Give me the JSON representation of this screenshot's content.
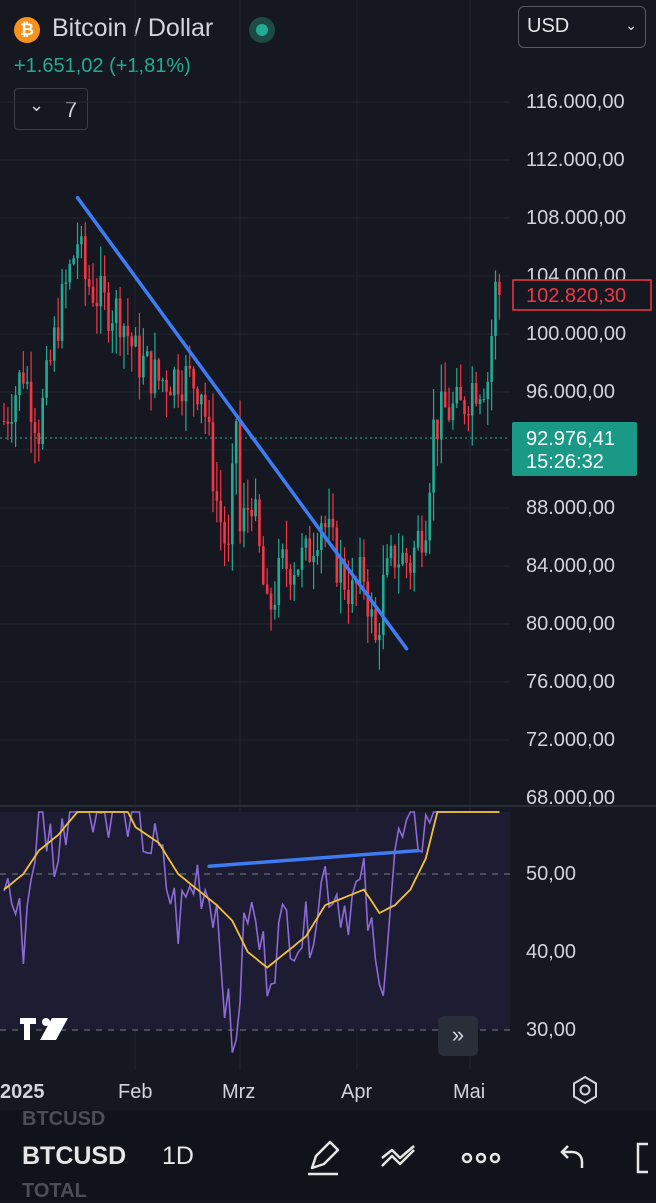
{
  "header": {
    "logo_icon": "bitcoin-icon",
    "logo_glyph": "₿",
    "title": "Bitcoin / Dollar",
    "change": "+1.651,02 (+1,81%)",
    "currency": "USD",
    "indicators_count": "7"
  },
  "colors": {
    "background": "#161821",
    "up": "#22ab94",
    "down": "#f23645",
    "trendline": "#3d7cf2",
    "rsi": "#8a6bd8",
    "rsi_ma": "#f0c236"
  },
  "price_axis": {
    "ticks": [
      "116.000,00",
      "112.000,00",
      "108.000,00",
      "104.000,00",
      "100.000,00",
      "96.000,00",
      "92.000,00",
      "88.000,00",
      "84.000,00",
      "80.000,00",
      "76.000,00",
      "72.000,00",
      "68.000,00"
    ],
    "last_price_label": "102.820,30",
    "prev_close_label": "92.976,41",
    "countdown": "15:26:32"
  },
  "rsi_axis": {
    "ticks": [
      "50,00",
      "40,00",
      "30,00"
    ]
  },
  "time_axis": {
    "labels": [
      "2025",
      "Feb",
      "Mrz",
      "Apr",
      "Mai"
    ]
  },
  "chart_data": [
    {
      "type": "candlestick",
      "title": "Bitcoin / Dollar",
      "interval": "1D",
      "x": [
        "2025-01-01",
        "2025-01-06",
        "2025-01-10",
        "2025-01-15",
        "2025-01-20",
        "2025-01-22",
        "2025-01-27",
        "2025-01-31",
        "2025-02-04",
        "2025-02-10",
        "2025-02-15",
        "2025-02-21",
        "2025-02-25",
        "2025-02-28",
        "2025-03-02",
        "2025-03-03",
        "2025-03-06",
        "2025-03-10",
        "2025-03-14",
        "2025-03-20",
        "2025-03-24",
        "2025-03-28",
        "2025-04-01",
        "2025-04-04",
        "2025-04-07",
        "2025-04-09",
        "2025-04-12",
        "2025-04-16",
        "2025-04-20",
        "2025-04-22",
        "2025-04-25",
        "2025-04-29",
        "2025-05-02",
        "2025-05-06",
        "2025-05-08",
        "2025-05-09"
      ],
      "close": [
        94000,
        97500,
        93500,
        101000,
        106500,
        103800,
        102000,
        101500,
        98500,
        96800,
        97200,
        96500,
        88500,
        84500,
        94200,
        86200,
        89000,
        80500,
        84000,
        84500,
        87500,
        84300,
        82000,
        83500,
        78500,
        82500,
        84800,
        84200,
        87500,
        93500,
        94700,
        94800,
        96500,
        97000,
        103000,
        102820
      ],
      "high_max": 109000,
      "low_min": 74500,
      "ylim": [
        68000,
        116000
      ],
      "ylabel": "",
      "trendline": {
        "from": [
          "2025-01-20",
          109400
        ],
        "to": [
          "2025-04-15",
          78300
        ]
      },
      "annotations": [
        {
          "label": "102.820,30"
        },
        {
          "label": "92.976,41"
        }
      ]
    },
    {
      "type": "line",
      "title": "RSI",
      "x": [
        "2025-01-01",
        "2025-01-06",
        "2025-01-10",
        "2025-01-15",
        "2025-01-20",
        "2025-01-25",
        "2025-01-31",
        "2025-02-04",
        "2025-02-10",
        "2025-02-15",
        "2025-02-20",
        "2025-02-25",
        "2025-03-01",
        "2025-03-05",
        "2025-03-10",
        "2025-03-15",
        "2025-03-20",
        "2025-03-25",
        "2025-03-30",
        "2025-04-04",
        "2025-04-08",
        "2025-04-12",
        "2025-04-16",
        "2025-04-20",
        "2025-04-25",
        "2025-05-02",
        "2025-05-09"
      ],
      "series": [
        {
          "values": [
            50,
            42,
            58,
            52,
            66,
            58,
            60,
            57,
            52,
            44,
            50,
            46,
            26,
            46,
            38,
            44,
            42,
            50,
            46,
            48,
            34,
            53,
            55,
            56,
            68,
            72,
            74
          ]
        },
        {
          "values": [
            48,
            50,
            53,
            55,
            58,
            58,
            60,
            56,
            54,
            50,
            48,
            46,
            44,
            40,
            38,
            40,
            42,
            46,
            47,
            48,
            45,
            46,
            48,
            52,
            62,
            66,
            70
          ]
        }
      ],
      "ylim": [
        25,
        72
      ],
      "reference_lines": [
        30,
        50
      ],
      "divergence_line": {
        "from": [
          "2025-02-23",
          51
        ],
        "to": [
          "2025-04-18",
          53
        ]
      }
    }
  ],
  "bottom_bar": {
    "symbol": "BTCUSD",
    "symbol_ghost_above": "BTCUSD",
    "symbol_ghost_below": "TOTAL",
    "interval": "1D",
    "tools": [
      "draw-pen-icon",
      "chart-style-icon",
      "more-icon",
      "undo-icon",
      "fullscreen-icon"
    ]
  }
}
